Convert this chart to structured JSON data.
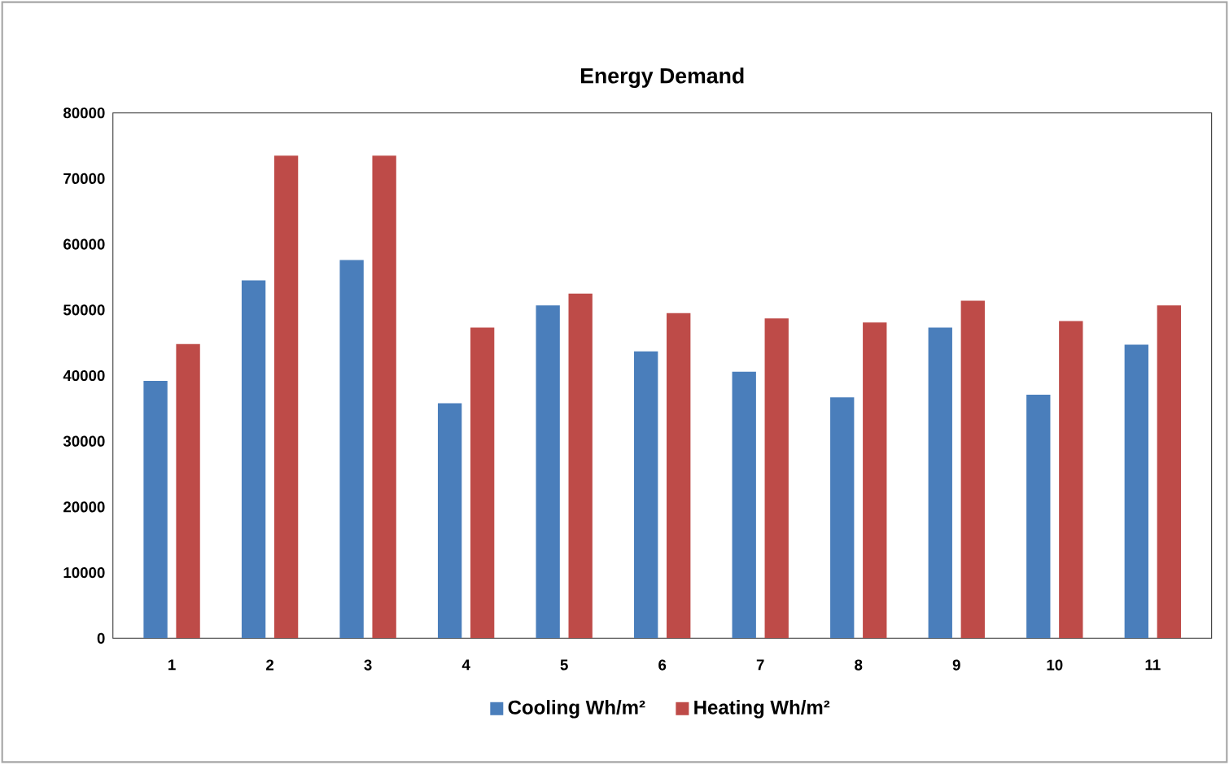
{
  "chart_data": {
    "type": "bar",
    "title": "Energy Demand",
    "categories": [
      "1",
      "2",
      "3",
      "4",
      "5",
      "6",
      "7",
      "8",
      "9",
      "10",
      "11"
    ],
    "series": [
      {
        "name": "Cooling Wh/m²",
        "color": "#4a7ebb",
        "values": [
          39200,
          54500,
          57600,
          35800,
          50700,
          43700,
          40600,
          36700,
          47300,
          37100,
          44700
        ]
      },
      {
        "name": "Heating Wh/m²",
        "color": "#be4b48",
        "values": [
          44800,
          73500,
          73500,
          47300,
          52500,
          49500,
          48700,
          48100,
          51400,
          48300,
          50700
        ]
      }
    ],
    "ylim": [
      0,
      80000
    ],
    "yticks": [
      0,
      10000,
      20000,
      30000,
      40000,
      50000,
      60000,
      70000,
      80000
    ],
    "grid": false,
    "legend": "bottom"
  }
}
